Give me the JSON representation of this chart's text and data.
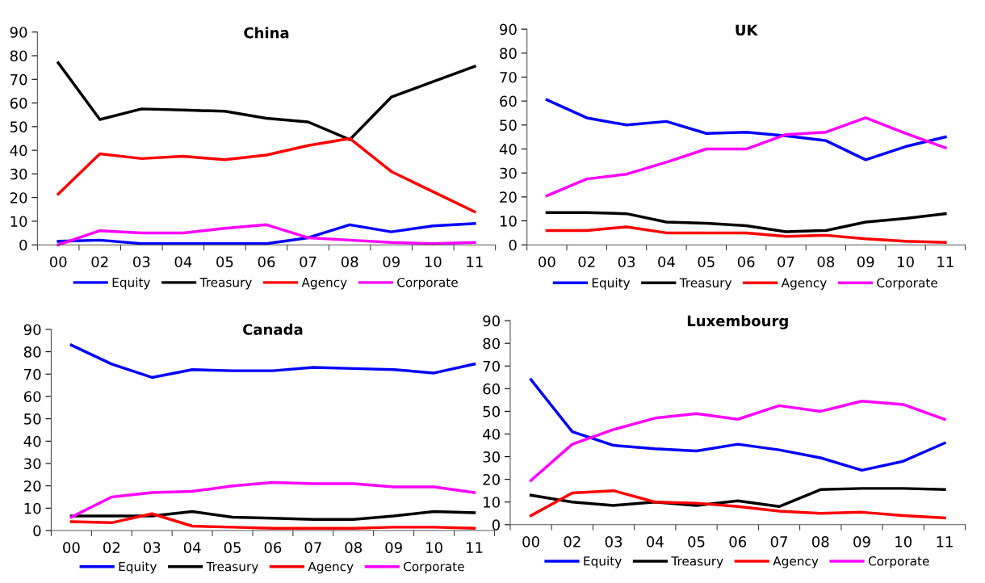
{
  "chart_data": [
    {
      "type": "line",
      "title": "China",
      "categories": [
        "00",
        "02",
        "03",
        "04",
        "05",
        "06",
        "07",
        "08",
        "09",
        "10",
        "11"
      ],
      "ylim": [
        0,
        90
      ],
      "yticks": [
        0,
        10,
        20,
        30,
        40,
        50,
        60,
        70,
        80,
        90
      ],
      "legend": "bottom",
      "grid": false,
      "series": [
        {
          "name": "Equity",
          "color": "#0000ff",
          "values": [
            1.5,
            2,
            0.5,
            0.5,
            0.5,
            0.5,
            3,
            8.5,
            5.5,
            8,
            9
          ]
        },
        {
          "name": "Treasury",
          "color": "#000000",
          "values": [
            77,
            53,
            57.5,
            57,
            56.5,
            53.5,
            52,
            44.5,
            62.5,
            69,
            75.5
          ]
        },
        {
          "name": "Agency",
          "color": "#ff0000",
          "values": [
            21.5,
            38.5,
            36.5,
            37.5,
            36,
            38,
            42,
            45,
            31,
            22.5,
            14
          ]
        },
        {
          "name": "Corporate",
          "color": "#ff00ff",
          "values": [
            0,
            6,
            5,
            5,
            7,
            8.5,
            3,
            2,
            1,
            0.5,
            1
          ]
        }
      ]
    },
    {
      "type": "line",
      "title": "UK",
      "categories": [
        "00",
        "02",
        "03",
        "04",
        "05",
        "06",
        "07",
        "08",
        "09",
        "10",
        "11"
      ],
      "ylim": [
        0,
        90
      ],
      "yticks": [
        0,
        10,
        20,
        30,
        40,
        50,
        60,
        70,
        80,
        90
      ],
      "legend": "bottom",
      "grid": false,
      "series": [
        {
          "name": "Equity",
          "color": "#0000ff",
          "values": [
            60.5,
            53,
            50,
            51.5,
            46.5,
            47,
            45.5,
            43.5,
            35.5,
            41,
            45
          ]
        },
        {
          "name": "Treasury",
          "color": "#000000",
          "values": [
            13.5,
            13.5,
            13,
            9.5,
            9,
            8,
            5.5,
            6,
            9.5,
            11,
            13
          ]
        },
        {
          "name": "Agency",
          "color": "#ff0000",
          "values": [
            6,
            6,
            7.5,
            5,
            5,
            5,
            3.5,
            4,
            2.5,
            1.5,
            1
          ]
        },
        {
          "name": "Corporate",
          "color": "#ff00ff",
          "values": [
            20.5,
            27.5,
            29.5,
            34.5,
            40,
            40,
            46,
            47,
            53,
            46.5,
            40.5
          ]
        }
      ]
    },
    {
      "type": "line",
      "title": "Canada",
      "categories": [
        "00",
        "02",
        "03",
        "04",
        "05",
        "06",
        "07",
        "08",
        "09",
        "10",
        "11"
      ],
      "ylim": [
        0,
        90
      ],
      "yticks": [
        0,
        10,
        20,
        30,
        40,
        50,
        60,
        70,
        80,
        90
      ],
      "legend": "bottom",
      "grid": false,
      "series": [
        {
          "name": "Equity",
          "color": "#0000ff",
          "values": [
            83,
            74.5,
            68.5,
            72,
            71.5,
            71.5,
            73,
            72.5,
            72,
            70.5,
            74.5
          ]
        },
        {
          "name": "Treasury",
          "color": "#000000",
          "values": [
            6.5,
            6.5,
            6.5,
            8.5,
            6,
            5.5,
            5,
            5,
            6.5,
            8.5,
            8
          ]
        },
        {
          "name": "Agency",
          "color": "#ff0000",
          "values": [
            4,
            3.5,
            7.5,
            2,
            1.5,
            1,
            1,
            1,
            1.5,
            1.5,
            1
          ]
        },
        {
          "name": "Corporate",
          "color": "#ff00ff",
          "values": [
            6,
            15,
            17,
            17.5,
            20,
            21.5,
            21,
            21,
            19.5,
            19.5,
            17
          ]
        }
      ]
    },
    {
      "type": "line",
      "title": "Luxembourg",
      "categories": [
        "00",
        "02",
        "03",
        "04",
        "05",
        "06",
        "07",
        "08",
        "09",
        "10",
        "11"
      ],
      "ylim": [
        0,
        90
      ],
      "yticks": [
        0,
        10,
        20,
        30,
        40,
        50,
        60,
        70,
        80,
        90
      ],
      "legend": "bottom",
      "grid": false,
      "series": [
        {
          "name": "Equity",
          "color": "#0000ff",
          "values": [
            64,
            41,
            35,
            33.5,
            32.5,
            35.5,
            33,
            29.5,
            24,
            28,
            36
          ]
        },
        {
          "name": "Treasury",
          "color": "#000000",
          "values": [
            13,
            10,
            8.5,
            10,
            8.5,
            10.5,
            8,
            15.5,
            16,
            16,
            15.5
          ]
        },
        {
          "name": "Agency",
          "color": "#ff0000",
          "values": [
            4,
            14,
            15,
            10,
            9.5,
            8,
            6,
            5,
            5.5,
            4,
            3
          ]
        },
        {
          "name": "Corporate",
          "color": "#ff00ff",
          "values": [
            19.5,
            35.5,
            42,
            47,
            49,
            46.5,
            52.5,
            50,
            54.5,
            53,
            46.5
          ]
        }
      ]
    }
  ]
}
